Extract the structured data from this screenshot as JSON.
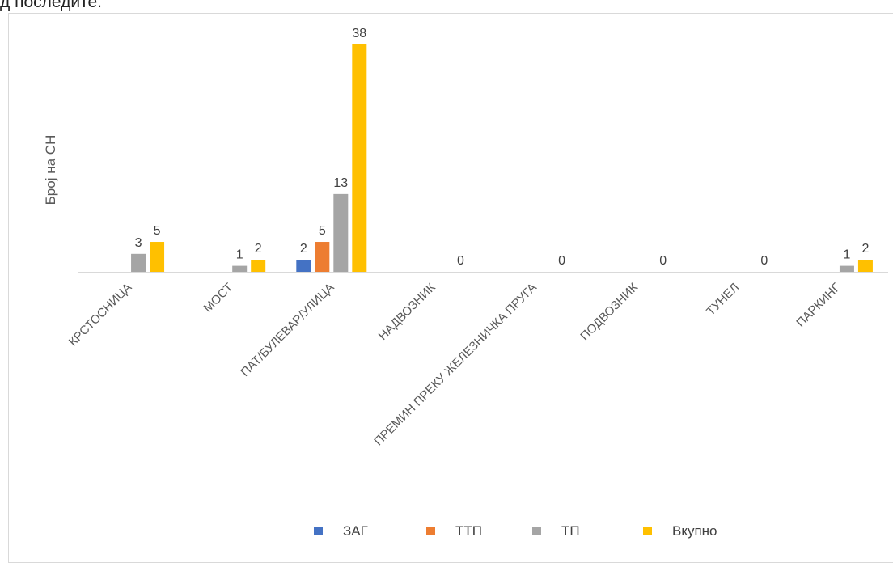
{
  "page_top_text": "д последите.",
  "chart_data": {
    "type": "bar",
    "title": "",
    "xlabel": "",
    "ylabel": "Број на СН",
    "categories": [
      "КРСТОСНИЦА",
      "МОСТ",
      "ПАТ/БУЛЕВАР/УЛИЦА",
      "НАДВОЗНИК",
      "ПРЕМИН ПРЕКУ ЖЕЛЕЗНИЧКА ПРУГА",
      "ПОДВОЗНИК",
      "ТУНЕЛ",
      "ПАРКИНГ"
    ],
    "series": [
      {
        "name": "ЗАГ",
        "color": "#4472C4",
        "values": [
          0,
          0,
          2,
          0,
          0,
          0,
          0,
          0
        ],
        "labels": [
          "",
          "",
          "2",
          "",
          "",
          "",
          "",
          ""
        ]
      },
      {
        "name": "ТТП",
        "color": "#ED7D31",
        "values": [
          0,
          0,
          5,
          0,
          0,
          0,
          0,
          0
        ],
        "labels": [
          "",
          "",
          "5",
          "",
          "",
          "",
          "",
          ""
        ]
      },
      {
        "name": "ТП",
        "color": "#A5A5A5",
        "values": [
          3,
          1,
          13,
          0,
          0,
          0,
          0,
          1
        ],
        "labels": [
          "3",
          "1",
          "13",
          "",
          "",
          "",
          "",
          "1"
        ]
      },
      {
        "name": "Вкупно",
        "color": "#FFC000",
        "values": [
          5,
          2,
          38,
          0,
          0,
          0,
          0,
          2
        ],
        "labels": [
          "5",
          "2",
          "38",
          "0",
          "0",
          "0",
          "0",
          "2"
        ]
      }
    ],
    "ylim": [
      0,
      38
    ],
    "grid": false,
    "legend_position": "bottom"
  }
}
